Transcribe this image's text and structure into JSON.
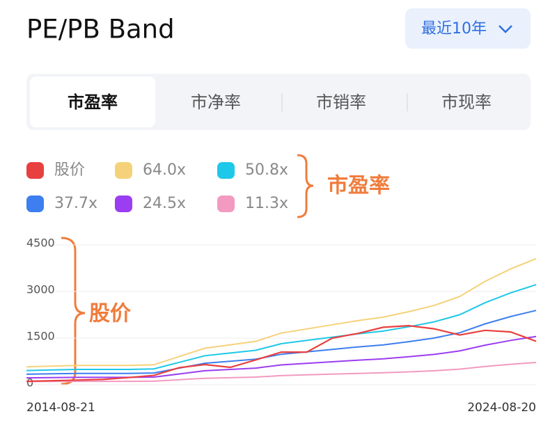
{
  "header": {
    "title": "PE/PB Band",
    "range_button": "最近10年"
  },
  "tabs": [
    "市盈率",
    "市净率",
    "市销率",
    "市现率"
  ],
  "chart_data": {
    "type": "line",
    "categories": [
      "2014-08-21",
      null,
      null,
      null,
      null,
      null,
      null,
      null,
      null,
      null,
      null,
      null,
      null,
      null,
      null,
      null,
      null,
      null,
      null,
      null,
      "2024-08-20"
    ],
    "series": [
      {
        "name": "股价",
        "color": "#e8403f",
        "values": [
          110,
          130,
          150,
          170,
          230,
          300,
          550,
          650,
          560,
          800,
          1050,
          1050,
          1500,
          1650,
          1850,
          1900,
          1800,
          1600,
          1750,
          1700,
          1400
        ]
      },
      {
        "name": "64.0x",
        "color": "#f5d27a",
        "values": [
          576,
          599,
          621,
          621,
          621,
          643,
          909,
          1175,
          1286,
          1397,
          1663,
          1796,
          1929,
          2062,
          2173,
          2350,
          2550,
          2838,
          3326,
          3725,
          4057
        ]
      },
      {
        "name": "50.8x",
        "color": "#1ec8e8",
        "values": [
          457,
          475,
          493,
          493,
          493,
          510,
          722,
          933,
          1021,
          1109,
          1320,
          1426,
          1531,
          1637,
          1725,
          1865,
          2024,
          2253,
          2640,
          2957,
          3220
        ]
      },
      {
        "name": "37.7x",
        "color": "#3d7ef0",
        "values": [
          339,
          353,
          366,
          366,
          366,
          379,
          535,
          692,
          757,
          823,
          980,
          1058,
          1136,
          1215,
          1280,
          1385,
          1502,
          1672,
          1959,
          2194,
          2390
        ]
      },
      {
        "name": "24.5x",
        "color": "#9b3df0",
        "values": [
          221,
          229,
          238,
          238,
          238,
          246,
          348,
          450,
          493,
          535,
          637,
          688,
          739,
          790,
          832,
          900,
          977,
          1087,
          1274,
          1427,
          1554
        ]
      },
      {
        "name": "11.3x",
        "color": "#f29ac0",
        "values": [
          102,
          106,
          110,
          110,
          110,
          114,
          161,
          208,
          227,
          247,
          294,
          317,
          341,
          364,
          384,
          415,
          450,
          501,
          587,
          658,
          716
        ]
      }
    ],
    "ylim": [
      0,
      4500
    ],
    "yticks": [
      0,
      1500,
      3000,
      4500
    ],
    "grid": true,
    "annotations": [
      "市盈率",
      "股价"
    ]
  }
}
